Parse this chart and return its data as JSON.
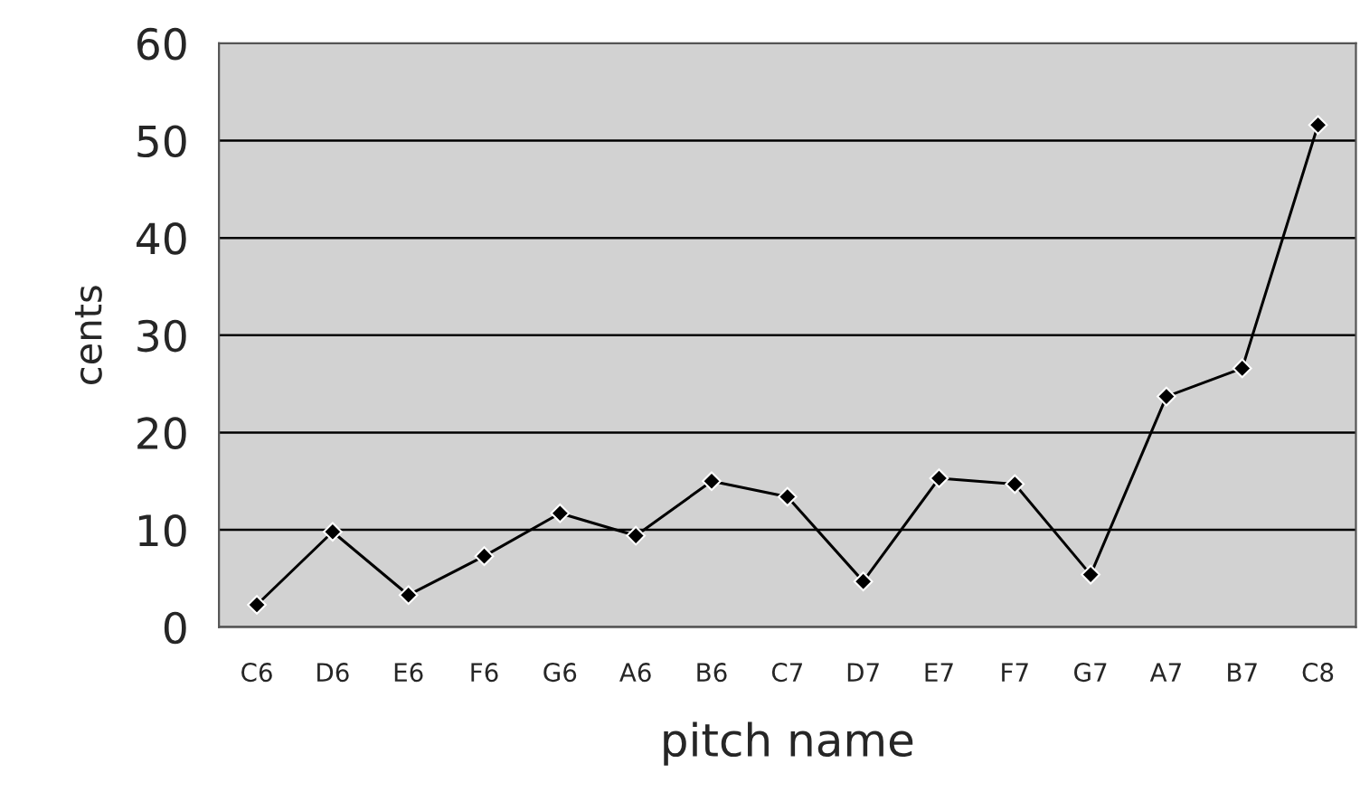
{
  "chart_data": {
    "type": "line",
    "xlabel": "pitch name",
    "ylabel": "cents",
    "categories": [
      "C6",
      "D6",
      "E6",
      "F6",
      "G6",
      "A6",
      "B6",
      "C7",
      "D7",
      "E7",
      "F7",
      "G7",
      "A7",
      "B7",
      "C8"
    ],
    "series": [
      {
        "color": "#000000",
        "values": [
          2.3,
          9.8,
          3.3,
          7.3,
          11.7,
          9.4,
          15.0,
          13.4,
          4.7,
          15.3,
          14.7,
          5.4,
          23.7,
          26.6,
          51.6
        ]
      }
    ],
    "ylim": [
      0,
      60
    ],
    "yticks": [
      0,
      10,
      20,
      30,
      40,
      50,
      60
    ],
    "grid": "y",
    "marker": "diamond",
    "line_style": "solid",
    "legend": false
  }
}
